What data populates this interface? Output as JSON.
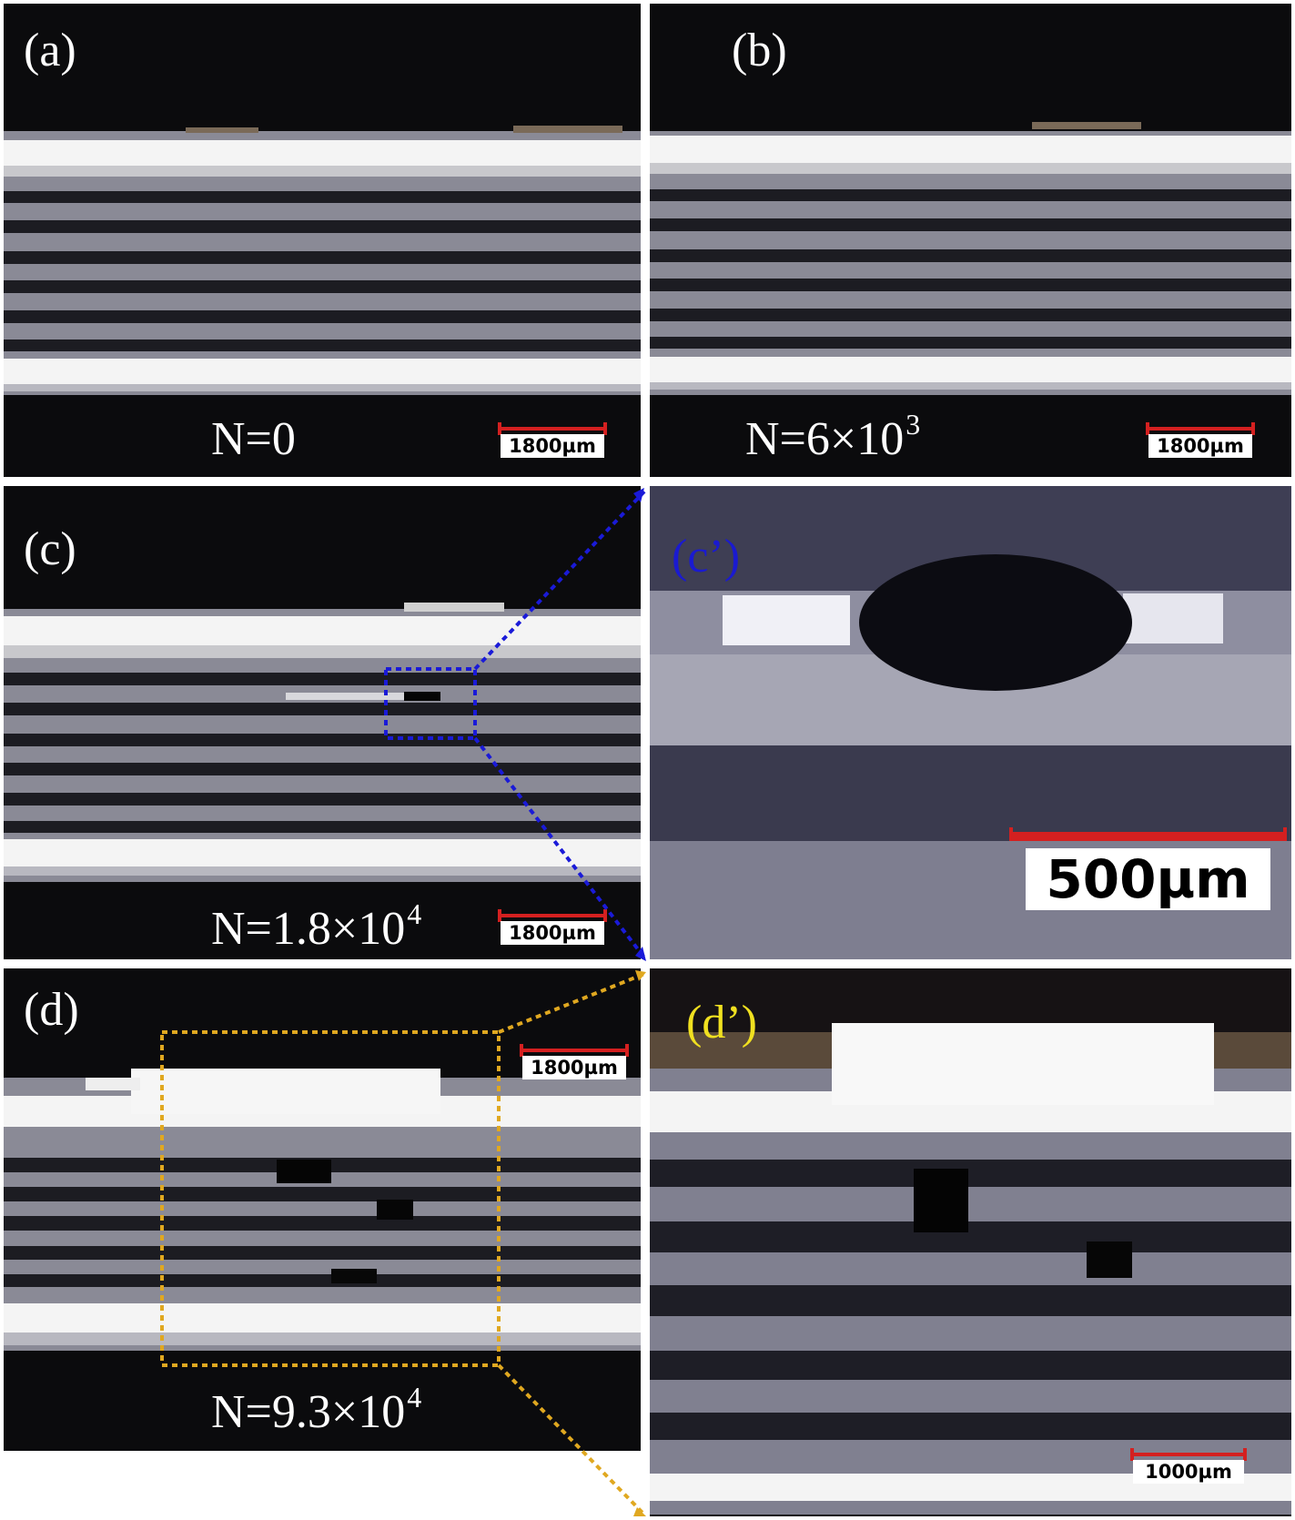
{
  "panels": {
    "a": {
      "label": "(a)",
      "n_text": "N=0",
      "n_exp": "",
      "scale": "1800µm"
    },
    "b": {
      "label": "(b)",
      "n_text": "N=6×10",
      "n_exp": "3",
      "scale": "1800µm"
    },
    "c": {
      "label": "(c)",
      "n_text": "N=1.8×10",
      "n_exp": "4",
      "scale": "1800µm"
    },
    "c_prime": {
      "label": "(c’)",
      "scale": "500µm"
    },
    "d": {
      "label": "(d)",
      "n_text": "N=9.3×10",
      "n_exp": "4",
      "scale": "1800µm"
    },
    "d_prime": {
      "label": "(d’)",
      "scale": "1000µm"
    }
  },
  "colors": {
    "scale_bar": "#d42020",
    "c_prime_label": "#1a1ad0",
    "d_prime_label": "#f0e020",
    "zoom_c": "#1a1ad8",
    "zoom_d": "#e0a820"
  }
}
